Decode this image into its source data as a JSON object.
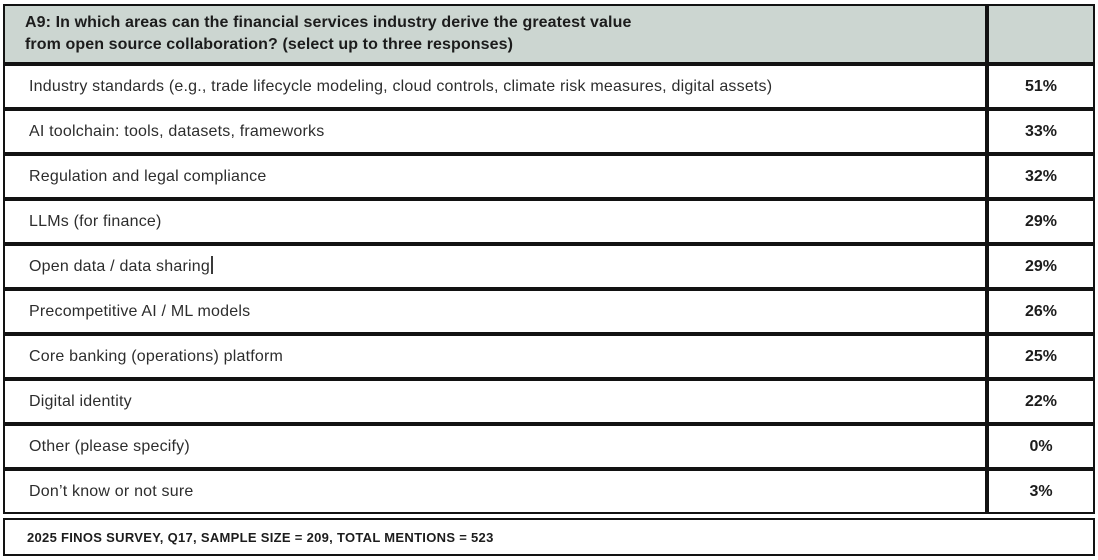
{
  "chart_data": {
    "type": "table",
    "title": "A9: In which areas can the financial services industry derive the greatest value from open source collaboration? (select up to three responses)",
    "categories": [
      "Industry standards (e.g., trade lifecycle modeling, cloud controls, climate risk measures, digital assets)",
      "AI toolchain: tools, datasets, frameworks",
      "Regulation and legal compliance",
      "LLMs (for finance)",
      "Open data / data sharing",
      "Precompetitive AI / ML models",
      "Core banking (operations) platform",
      "Digital identity",
      "Other (please specify)",
      "Don't know or not sure"
    ],
    "values": [
      51,
      33,
      32,
      29,
      29,
      26,
      25,
      22,
      0,
      3
    ],
    "unit": "%",
    "source_note": "2025 FINOS SURVEY, Q17, SAMPLE SIZE = 209, TOTAL MENTIONS = 523"
  },
  "header": {
    "question_line1": "A9: In which areas can the financial services industry derive the greatest value",
    "question_line2": "from open source collaboration? (select up to three responses)"
  },
  "rows": [
    {
      "label": "Industry standards (e.g., trade lifecycle modeling, cloud controls, climate risk measures, digital assets)",
      "value": "51%"
    },
    {
      "label": "AI toolchain: tools, datasets, frameworks",
      "value": "33%"
    },
    {
      "label": "Regulation and legal compliance",
      "value": "32%"
    },
    {
      "label": "LLMs (for finance)",
      "value": "29%"
    },
    {
      "label": "Open data / data sharing",
      "value": "29%"
    },
    {
      "label": "Precompetitive AI / ML models",
      "value": "26%"
    },
    {
      "label": "Core banking (operations) platform",
      "value": "25%"
    },
    {
      "label": "Digital identity",
      "value": "22%"
    },
    {
      "label": "Other (please specify)",
      "value": "0%"
    },
    {
      "label": "Don’t know or not sure",
      "value": "3%"
    }
  ],
  "footer": {
    "text": "2025 FINOS SURVEY, Q17, SAMPLE SIZE = 209, TOTAL MENTIONS = 523"
  },
  "colors": {
    "header_background": "#ccd6d1",
    "border": "#121212",
    "body_text": "#2d2d2d"
  }
}
